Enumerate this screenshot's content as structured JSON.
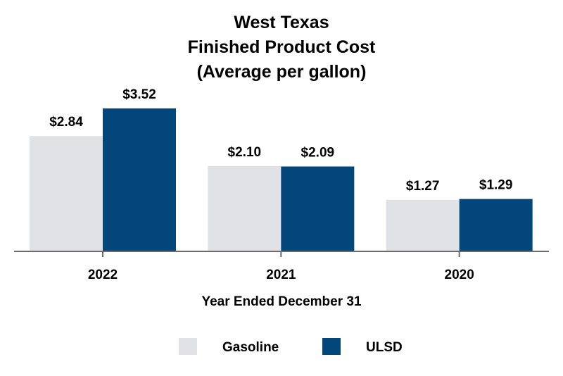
{
  "chart_data": {
    "type": "bar",
    "title": [
      "West Texas",
      "Finished Product Cost",
      "(Average per gallon)"
    ],
    "xlabel": "Year Ended December 31",
    "ylabel": "",
    "categories": [
      "2022",
      "2021",
      "2020"
    ],
    "series": [
      {
        "name": "Gasoline",
        "values": [
          2.84,
          2.1,
          1.27
        ],
        "labels": [
          "$2.84",
          "$2.10",
          "$1.27"
        ],
        "color": "#e1e2e6"
      },
      {
        "name": "ULSD",
        "values": [
          3.52,
          2.09,
          1.29
        ],
        "labels": [
          "$3.52",
          "$2.09",
          "$1.29"
        ],
        "color": "#03467a"
      }
    ],
    "ylim": [
      0,
      3.52
    ],
    "grid": false,
    "legend_position": "bottom",
    "axis_color": "#6b6b6b"
  }
}
